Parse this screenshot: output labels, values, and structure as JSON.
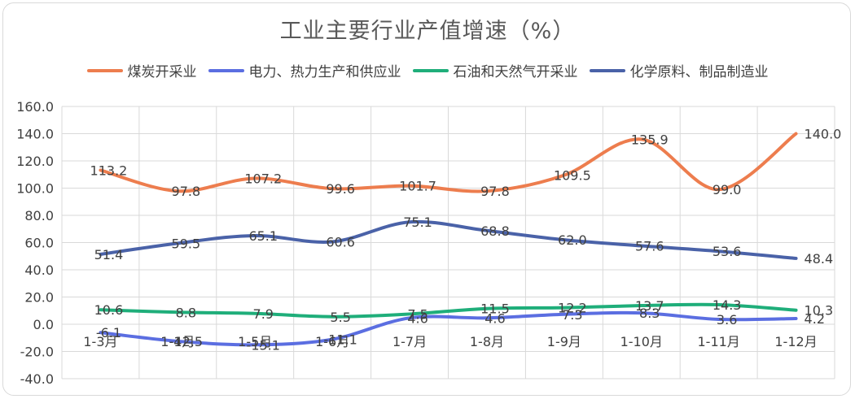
{
  "chart_data": {
    "type": "line",
    "title": "工业主要行业产值增速（%）",
    "categories": [
      "1-3月",
      "1-4月",
      "1-5月",
      "1-6月",
      "1-7月",
      "1-8月",
      "1-9月",
      "1-10月",
      "1-11月",
      "1-12月"
    ],
    "ylim": [
      -40,
      160
    ],
    "yticks": [
      "160.0",
      "140.0",
      "120.0",
      "100.0",
      "80.0",
      "60.0",
      "40.0",
      "20.0",
      "0.0",
      "-20.0",
      "-40.0"
    ],
    "grid": true,
    "legend_position": "top",
    "smooth": true,
    "series": [
      {
        "name": "煤炭开采业",
        "color": "#ED7D4E",
        "values": [
          113.2,
          97.8,
          107.2,
          99.6,
          101.7,
          97.8,
          109.5,
          135.9,
          99.0,
          140.0
        ],
        "labels": [
          "113.2",
          "97.8",
          "107.2",
          "99.6",
          "101.7",
          "97.8",
          "109.5",
          "135.9",
          "99.0",
          "140.0"
        ]
      },
      {
        "name": "电力、热力生产和供应业",
        "color": "#5B6EE1",
        "values": [
          -6.1,
          -12.5,
          -15.1,
          -11.1,
          4.6,
          4.6,
          7.3,
          8.3,
          3.6,
          4.2
        ],
        "labels": [
          "-6.1",
          "-12.5",
          "-15.1",
          "-11.1",
          "4.6",
          "4.6",
          "7.3",
          "8.3",
          "3.6",
          "4.2"
        ]
      },
      {
        "name": "石油和天然气开采业",
        "color": "#1FAE7A",
        "values": [
          10.6,
          8.8,
          7.9,
          5.5,
          7.5,
          11.5,
          12.2,
          13.7,
          14.3,
          10.3
        ],
        "labels": [
          "10.6",
          "8.8",
          "7.9",
          "5.5",
          "7.5",
          "11.5",
          "12.2",
          "13.7",
          "14.3",
          "10.3"
        ]
      },
      {
        "name": "化学原料、制品制造业",
        "color": "#4A62A8",
        "values": [
          51.4,
          59.5,
          65.1,
          60.6,
          75.1,
          68.8,
          62.0,
          57.6,
          53.6,
          48.4
        ],
        "labels": [
          "51.4",
          "59.5",
          "65.1",
          "60.6",
          "75.1",
          "68.8",
          "62.0",
          "57.6",
          "53.6",
          "48.4"
        ]
      }
    ]
  }
}
